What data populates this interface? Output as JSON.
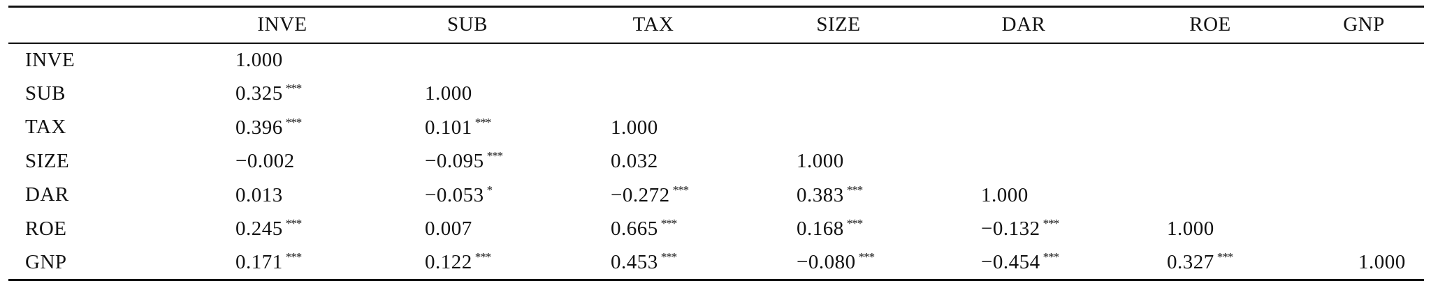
{
  "columns": [
    "INVE",
    "SUB",
    "TAX",
    "SIZE",
    "DAR",
    "ROE",
    "GNP"
  ],
  "rows": [
    {
      "label": "INVE",
      "cells": [
        {
          "value": "1.000",
          "stars": ""
        }
      ]
    },
    {
      "label": "SUB",
      "cells": [
        {
          "value": "0.325",
          "stars": "***"
        },
        {
          "value": "1.000",
          "stars": ""
        }
      ]
    },
    {
      "label": "TAX",
      "cells": [
        {
          "value": "0.396",
          "stars": "***"
        },
        {
          "value": "0.101",
          "stars": "***"
        },
        {
          "value": "1.000",
          "stars": ""
        }
      ]
    },
    {
      "label": "SIZE",
      "cells": [
        {
          "value": "−0.002",
          "stars": ""
        },
        {
          "value": "−0.095",
          "stars": "***"
        },
        {
          "value": "0.032",
          "stars": ""
        },
        {
          "value": "1.000",
          "stars": ""
        }
      ]
    },
    {
      "label": "DAR",
      "cells": [
        {
          "value": "0.013",
          "stars": ""
        },
        {
          "value": "−0.053",
          "stars": "*"
        },
        {
          "value": "−0.272",
          "stars": "***"
        },
        {
          "value": "0.383",
          "stars": "***"
        },
        {
          "value": "1.000",
          "stars": ""
        }
      ]
    },
    {
      "label": "ROE",
      "cells": [
        {
          "value": "0.245",
          "stars": "***"
        },
        {
          "value": "0.007",
          "stars": ""
        },
        {
          "value": "0.665",
          "stars": "***"
        },
        {
          "value": "0.168",
          "stars": "***"
        },
        {
          "value": "−0.132",
          "stars": "***"
        },
        {
          "value": "1.000",
          "stars": ""
        }
      ]
    },
    {
      "label": "GNP",
      "cells": [
        {
          "value": "0.171",
          "stars": "***"
        },
        {
          "value": "0.122",
          "stars": "***"
        },
        {
          "value": "0.453",
          "stars": "***"
        },
        {
          "value": "−0.080",
          "stars": "***"
        },
        {
          "value": "−0.454",
          "stars": "***"
        },
        {
          "value": "0.327",
          "stars": "***"
        },
        {
          "value": "1.000",
          "stars": ""
        }
      ]
    }
  ]
}
